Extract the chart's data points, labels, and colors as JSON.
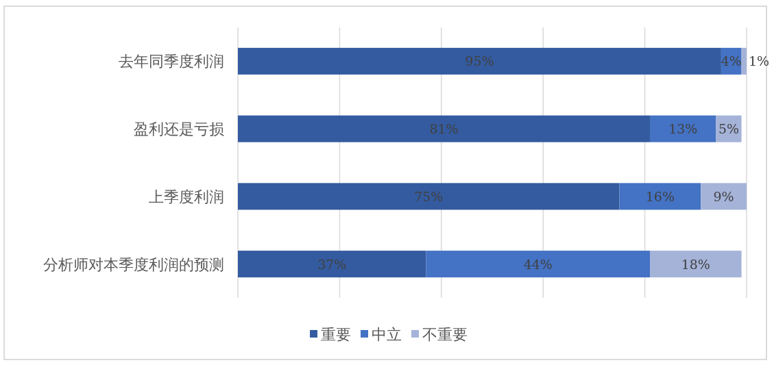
{
  "chart_data": {
    "type": "bar",
    "orientation": "horizontal",
    "stacked": true,
    "categories": [
      "去年同季度利润",
      "盈利还是亏损",
      "上季度利润",
      "分析师对本季度利润的预测"
    ],
    "series": [
      {
        "name": "重要",
        "color": "#345b9f",
        "values": [
          95,
          81,
          75,
          37
        ],
        "value_labels": [
          "95%",
          "81%",
          "75%",
          "37%"
        ]
      },
      {
        "name": "中立",
        "color": "#4472c4",
        "values": [
          4,
          13,
          16,
          44
        ],
        "value_labels": [
          "4%",
          "13%",
          "16%",
          "44%"
        ]
      },
      {
        "name": "不重要",
        "color": "#a5b3d9",
        "values": [
          1,
          5,
          9,
          18
        ],
        "value_labels": [
          "1%",
          "5%",
          "9%",
          "18%"
        ]
      }
    ],
    "tick_labels": "y",
    "grid": "x",
    "legend": "bottom"
  }
}
